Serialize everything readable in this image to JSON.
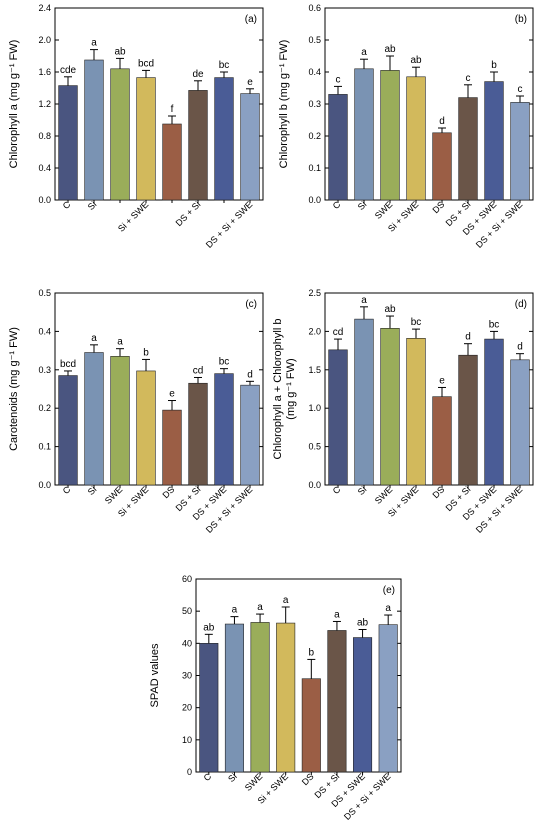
{
  "colors": [
    "#4a5580",
    "#7a93b3",
    "#9aad5a",
    "#d2b95c",
    "#9b5e45",
    "#6a5548",
    "#4a5c96",
    "#8aa0c2"
  ],
  "chart_data": [
    {
      "type": "bar",
      "panel": "(a)",
      "ylabel": "Chlorophyll a (mg g⁻¹ FW)",
      "ylim": [
        0,
        2.4
      ],
      "yticks": [
        "0.0",
        "0.4",
        "0.8",
        "1.2",
        "1.6",
        "2.0",
        "2.4"
      ],
      "categories": [
        "C",
        "Si",
        "SWE",
        "Si + SWE",
        "DS",
        "DS + Si",
        "DS + SWE",
        "DS + Si + SWE"
      ],
      "tick_labels": [
        "C",
        "Si",
        "Si + SWE",
        "DS + Si",
        "DS + Si + SWE"
      ],
      "tick_label_indices": [
        0,
        1,
        3,
        5,
        7
      ],
      "values": [
        1.43,
        1.75,
        1.64,
        1.53,
        0.95,
        1.37,
        1.53,
        1.33
      ],
      "errors": [
        0.11,
        0.13,
        0.13,
        0.09,
        0.1,
        0.12,
        0.07,
        0.06
      ],
      "letters": [
        "cde",
        "a",
        "ab",
        "bcd",
        "f",
        "de",
        "bc",
        "e"
      ]
    },
    {
      "type": "bar",
      "panel": "(b)",
      "ylabel": "Chlorophyll b (mg g⁻¹ FW)",
      "ylim": [
        0,
        0.6
      ],
      "yticks": [
        "0.0",
        "0.1",
        "0.2",
        "0.3",
        "0.4",
        "0.5",
        "0.6"
      ],
      "categories": [
        "C",
        "Si",
        "SWE",
        "Si + SWE",
        "DS",
        "DS + Si",
        "DS + SWE",
        "DS + Si + SWE"
      ],
      "tick_labels": [
        "C",
        "Si",
        "SWE",
        "Si + SWE",
        "DS",
        "DS + Si",
        "DS + SWE",
        "DS + Si + SWE"
      ],
      "tick_label_indices": [
        0,
        1,
        2,
        3,
        4,
        5,
        6,
        7
      ],
      "values": [
        0.33,
        0.41,
        0.405,
        0.385,
        0.21,
        0.32,
        0.37,
        0.305
      ],
      "errors": [
        0.025,
        0.03,
        0.045,
        0.03,
        0.015,
        0.04,
        0.03,
        0.02
      ],
      "letters": [
        "c",
        "a",
        "ab",
        "ab",
        "d",
        "c",
        "b",
        "c"
      ]
    },
    {
      "type": "bar",
      "panel": "(c)",
      "ylabel": "Carotenoids (mg g⁻¹ FW)",
      "ylim": [
        0,
        0.5
      ],
      "yticks": [
        "0.0",
        "0.1",
        "0.2",
        "0.3",
        "0.4",
        "0.5"
      ],
      "categories": [
        "C",
        "Si",
        "SWE",
        "Si + SWE",
        "DS",
        "DS + Si",
        "DS + SWE",
        "DS + Si + SWE"
      ],
      "tick_labels": [
        "C",
        "Si",
        "SWE",
        "Si + SWE",
        "DS",
        "DS + Si",
        "DS + SWE",
        "DS + Si + SWE"
      ],
      "tick_label_indices": [
        0,
        1,
        2,
        3,
        4,
        5,
        6,
        7
      ],
      "values": [
        0.285,
        0.345,
        0.335,
        0.297,
        0.195,
        0.265,
        0.29,
        0.26
      ],
      "errors": [
        0.012,
        0.02,
        0.02,
        0.03,
        0.025,
        0.015,
        0.013,
        0.01
      ],
      "letters": [
        "bcd",
        "a",
        "a",
        "b",
        "e",
        "cd",
        "bc",
        "d"
      ]
    },
    {
      "type": "bar",
      "panel": "(d)",
      "ylabel_line1": "Chlorophyll a + Chlorophyll b",
      "ylabel_line2": "(mg g⁻¹ FW)",
      "ylim": [
        0,
        2.5
      ],
      "yticks": [
        "0.0",
        "0.5",
        "1.0",
        "1.5",
        "2.0",
        "2.5"
      ],
      "categories": [
        "C",
        "Si",
        "SWE",
        "Si + SWE",
        "DS",
        "DS + Si",
        "DS + SWE",
        "DS + Si + SWE"
      ],
      "tick_labels": [
        "C",
        "Si",
        "SWE",
        "Si + SWE",
        "DS",
        "DS + Si",
        "DS + SWE",
        "DS + Si + SWE"
      ],
      "tick_label_indices": [
        0,
        1,
        2,
        3,
        4,
        5,
        6,
        7
      ],
      "values": [
        1.76,
        2.16,
        2.04,
        1.91,
        1.15,
        1.69,
        1.9,
        1.63
      ],
      "errors": [
        0.14,
        0.16,
        0.16,
        0.12,
        0.12,
        0.15,
        0.1,
        0.08
      ],
      "letters": [
        "cd",
        "a",
        "ab",
        "bc",
        "e",
        "d",
        "bc",
        "d"
      ]
    },
    {
      "type": "bar",
      "panel": "(e)",
      "ylabel": "SPAD values",
      "ylim": [
        0,
        60
      ],
      "yticks": [
        "0",
        "10",
        "20",
        "30",
        "40",
        "50",
        "60"
      ],
      "categories": [
        "C",
        "Si",
        "SWE",
        "Si + SWE",
        "DS",
        "DS + Si",
        "DS + SWE",
        "DS + Si + SWE"
      ],
      "tick_labels": [
        "C",
        "Si",
        "SWE",
        "Si + SWE",
        "DS",
        "DS + Si",
        "DS + SWE",
        "DS + Si + SWE"
      ],
      "tick_label_indices": [
        0,
        1,
        2,
        3,
        4,
        5,
        6,
        7
      ],
      "values": [
        40,
        46,
        46.5,
        46.3,
        29,
        44,
        41.8,
        45.8
      ],
      "errors": [
        2.8,
        2.3,
        2.6,
        5,
        6,
        2.8,
        2.5,
        3
      ],
      "letters": [
        "ab",
        "a",
        "a",
        "a",
        "b",
        "a",
        "ab",
        "a"
      ]
    }
  ]
}
